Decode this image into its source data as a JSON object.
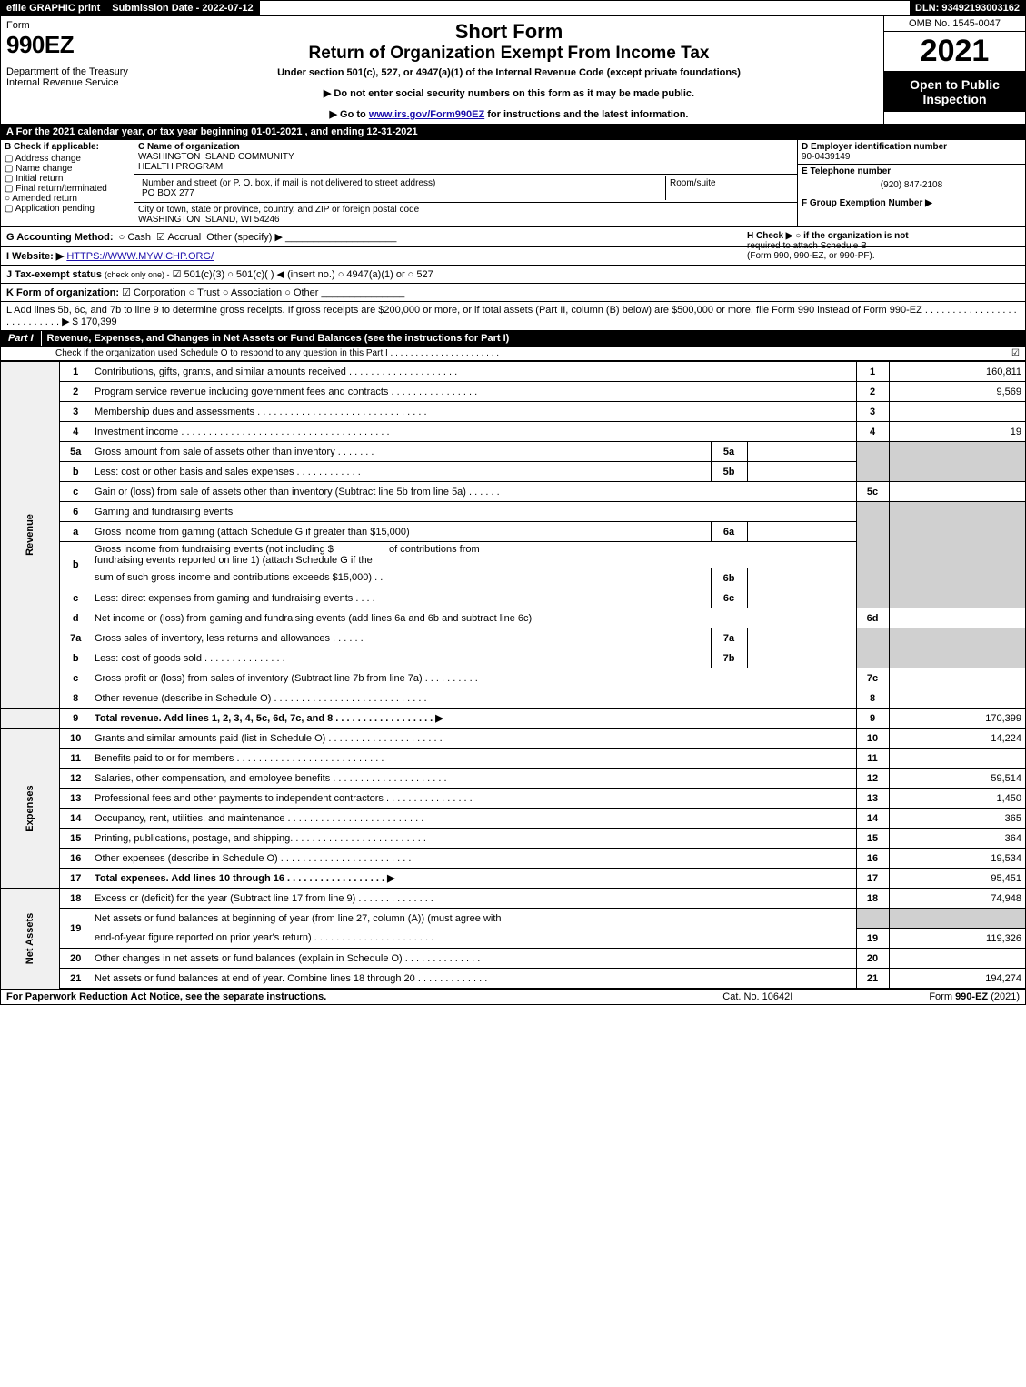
{
  "colors": {
    "black": "#000000",
    "white": "#ffffff",
    "shaded": "#d0d0d0",
    "link": "#1a0dab"
  },
  "topbar": {
    "efile": "efile GRAPHIC print",
    "sub_label": "Submission Date - 2022-07-12",
    "dln": "DLN: 93492193003162"
  },
  "header": {
    "form_label": "Form",
    "form_number": "990EZ",
    "dept1": "Department of the Treasury",
    "dept2": "Internal Revenue Service",
    "short_form": "Short Form",
    "title": "Return of Organization Exempt From Income Tax",
    "subtitle": "Under section 501(c), 527, or 4947(a)(1) of the Internal Revenue Code (except private foundations)",
    "directive1": "▶ Do not enter social security numbers on this form as it may be made public.",
    "directive2_pre": "▶ Go to ",
    "directive2_link": "www.irs.gov/Form990EZ",
    "directive2_post": " for instructions and the latest information.",
    "omb": "OMB No. 1545-0047",
    "year": "2021",
    "open": "Open to Public Inspection"
  },
  "row_a": "A  For the 2021 calendar year, or tax year beginning 01-01-2021  , and ending 12-31-2021",
  "section_b": {
    "label": "B  Check if applicable:",
    "items": [
      "Address change",
      "Name change",
      "Initial return",
      "Final return/terminated",
      "Amended return",
      "Application pending"
    ]
  },
  "section_c": {
    "name_lbl": "C Name of organization",
    "name1": "WASHINGTON ISLAND COMMUNITY",
    "name2": "HEALTH PROGRAM",
    "street_lbl": "Number and street (or P. O. box, if mail is not delivered to street address)",
    "street": "PO BOX 277",
    "suite_lbl": "Room/suite",
    "city_lbl": "City or town, state or province, country, and ZIP or foreign postal code",
    "city": "WASHINGTON ISLAND, WI  54246"
  },
  "section_d": {
    "ein_lbl": "D Employer identification number",
    "ein": "90-0439149",
    "tel_lbl": "E Telephone number",
    "tel": "(920) 847-2108",
    "grp_lbl": "F Group Exemption Number  ▶"
  },
  "row_g": {
    "label": "G Accounting Method:",
    "cash": "Cash",
    "accrual": "Accrual",
    "other": "Other (specify) ▶",
    "line": "____________________"
  },
  "row_h": {
    "label": "H  Check ▶  ○  if the organization is not",
    "line2": "required to attach Schedule B",
    "line3": "(Form 990, 990-EZ, or 990-PF)."
  },
  "row_i": {
    "label": "I Website: ▶",
    "url": "HTTPS://WWW.MYWICHP.ORG/"
  },
  "row_j": {
    "label": "J Tax-exempt status",
    "small": "(check only one) -",
    "opt1": "501(c)(3)",
    "opt2": "501(c)(  )",
    "insert": "◀ (insert no.)",
    "opt3": "4947(a)(1) or",
    "opt4": "527"
  },
  "row_k": {
    "label": "K Form of organization:",
    "opts": [
      "Corporation",
      "Trust",
      "Association",
      "Other"
    ],
    "checked": 0,
    "line": "_______________"
  },
  "row_l": {
    "text": "L Add lines 5b, 6c, and 7b to line 9 to determine gross receipts. If gross receipts are $200,000 or more, or if total assets (Part II, column (B) below) are $500,000 or more, file Form 990 instead of Form 990-EZ  .  .  .  .  .  .  .  .  .  .  .  .  .  .  .  .  .  .  .  .  .  .  .  .  .  .  . ▶ $",
    "amount": "170,399"
  },
  "part1": {
    "tab": "Part I",
    "title": "Revenue, Expenses, and Changes in Net Assets or Fund Balances (see the instructions for Part I)",
    "check_text": "Check if the organization used Schedule O to respond to any question in this Part I  .  .  .  .  .  .  .  .  .  .  .  .  .  .  .  .  .  .  .  .  .  .",
    "check_checked": true
  },
  "sections": {
    "revenue": "Revenue",
    "expenses": "Expenses",
    "netassets": "Net Assets"
  },
  "lines": {
    "l1": {
      "n": "1",
      "d": "Contributions, gifts, grants, and similar amounts received  .  .  .  .  .  .  .  .  .  .  .  .  .  .  .  .  .  .  .  .",
      "ln": "1",
      "v": "160,811"
    },
    "l2": {
      "n": "2",
      "d": "Program service revenue including government fees and contracts  .  .  .  .  .  .  .  .  .  .  .  .  .  .  .  .",
      "ln": "2",
      "v": "9,569"
    },
    "l3": {
      "n": "3",
      "d": "Membership dues and assessments  .  .  .  .  .  .  .  .  .  .  .  .  .  .  .  .  .  .  .  .  .  .  .  .  .  .  .  .  .  .  .",
      "ln": "3",
      "v": ""
    },
    "l4": {
      "n": "4",
      "d": "Investment income  .  .  .  .  .  .  .  .  .  .  .  .  .  .  .  .  .  .  .  .  .  .  .  .  .  .  .  .  .  .  .  .  .  .  .  .  .  .",
      "ln": "4",
      "v": "19"
    },
    "l5a": {
      "n": "5a",
      "d": "Gross amount from sale of assets other than inventory  .  .  .  .  .  .  .",
      "sub": "5a",
      "sv": ""
    },
    "l5b": {
      "n": "b",
      "d": "Less: cost or other basis and sales expenses  .  .  .  .  .  .  .  .  .  .  .  .",
      "sub": "5b",
      "sv": ""
    },
    "l5c": {
      "n": "c",
      "d": "Gain or (loss) from sale of assets other than inventory (Subtract line 5b from line 5a)  .  .  .  .  .  .",
      "ln": "5c",
      "v": ""
    },
    "l6": {
      "n": "6",
      "d": "Gaming and fundraising events"
    },
    "l6a": {
      "n": "a",
      "d": "Gross income from gaming (attach Schedule G if greater than $15,000)",
      "sub": "6a",
      "sv": ""
    },
    "l6b": {
      "n": "b",
      "d1": "Gross income from fundraising events (not including $",
      "d2": "of contributions from",
      "d3": "fundraising events reported on line 1) (attach Schedule G if the",
      "d4": "sum of such gross income and contributions exceeds $15,000)   .  .",
      "sub": "6b",
      "sv": ""
    },
    "l6c": {
      "n": "c",
      "d": "Less: direct expenses from gaming and fundraising events   .  .  .  .",
      "sub": "6c",
      "sv": ""
    },
    "l6d": {
      "n": "d",
      "d": "Net income or (loss) from gaming and fundraising events (add lines 6a and 6b and subtract line 6c)",
      "ln": "6d",
      "v": ""
    },
    "l7a": {
      "n": "7a",
      "d": "Gross sales of inventory, less returns and allowances  .  .  .  .  .  .",
      "sub": "7a",
      "sv": ""
    },
    "l7b": {
      "n": "b",
      "d": "Less: cost of goods sold        .  .  .  .  .  .  .  .  .  .  .  .  .  .  .",
      "sub": "7b",
      "sv": ""
    },
    "l7c": {
      "n": "c",
      "d": "Gross profit or (loss) from sales of inventory (Subtract line 7b from line 7a)  .  .  .  .  .  .  .  .  .  .",
      "ln": "7c",
      "v": ""
    },
    "l8": {
      "n": "8",
      "d": "Other revenue (describe in Schedule O)  .  .  .  .  .  .  .  .  .  .  .  .  .  .  .  .  .  .  .  .  .  .  .  .  .  .  .  .",
      "ln": "8",
      "v": ""
    },
    "l9": {
      "n": "9",
      "d": "Total revenue. Add lines 1, 2, 3, 4, 5c, 6d, 7c, and 8   .  .  .  .  .  .  .  .  .  .  .  .  .  .  .  .  .  .      ▶",
      "ln": "9",
      "v": "170,399",
      "bold": true
    },
    "l10": {
      "n": "10",
      "d": "Grants and similar amounts paid (list in Schedule O)  .  .  .  .  .  .  .  .  .  .  .  .  .  .  .  .  .  .  .  .  .",
      "ln": "10",
      "v": "14,224"
    },
    "l11": {
      "n": "11",
      "d": "Benefits paid to or for members       .  .  .  .  .  .  .  .  .  .  .  .  .  .  .  .  .  .  .  .  .  .  .  .  .  .  .",
      "ln": "11",
      "v": ""
    },
    "l12": {
      "n": "12",
      "d": "Salaries, other compensation, and employee benefits  .  .  .  .  .  .  .  .  .  .  .  .  .  .  .  .  .  .  .  .  .",
      "ln": "12",
      "v": "59,514"
    },
    "l13": {
      "n": "13",
      "d": "Professional fees and other payments to independent contractors  .  .  .  .  .  .  .  .  .  .  .  .  .  .  .  .",
      "ln": "13",
      "v": "1,450"
    },
    "l14": {
      "n": "14",
      "d": "Occupancy, rent, utilities, and maintenance .  .  .  .  .  .  .  .  .  .  .  .  .  .  .  .  .  .  .  .  .  .  .  .  .",
      "ln": "14",
      "v": "365"
    },
    "l15": {
      "n": "15",
      "d": "Printing, publications, postage, and shipping.  .  .  .  .  .  .  .  .  .  .  .  .  .  .  .  .  .  .  .  .  .  .  .  .",
      "ln": "15",
      "v": "364"
    },
    "l16": {
      "n": "16",
      "d": "Other expenses (describe in Schedule O)     .  .  .  .  .  .  .  .  .  .  .  .  .  .  .  .  .  .  .  .  .  .  .  .",
      "ln": "16",
      "v": "19,534"
    },
    "l17": {
      "n": "17",
      "d": "Total expenses. Add lines 10 through 16     .  .  .  .  .  .  .  .  .  .  .  .  .  .  .  .  .  .         ▶",
      "ln": "17",
      "v": "95,451",
      "bold": true
    },
    "l18": {
      "n": "18",
      "d": "Excess or (deficit) for the year (Subtract line 17 from line 9)     .  .  .  .  .  .  .  .  .  .  .  .  .  .",
      "ln": "18",
      "v": "74,948"
    },
    "l19": {
      "n": "19",
      "d1": "Net assets or fund balances at beginning of year (from line 27, column (A)) (must agree with",
      "d2": "end-of-year figure reported on prior year's return) .  .  .  .  .  .  .  .  .  .  .  .  .  .  .  .  .  .  .  .  .  .",
      "ln": "19",
      "v": "119,326"
    },
    "l20": {
      "n": "20",
      "d": "Other changes in net assets or fund balances (explain in Schedule O)  .  .  .  .  .  .  .  .  .  .  .  .  .  .",
      "ln": "20",
      "v": ""
    },
    "l21": {
      "n": "21",
      "d": "Net assets or fund balances at end of year. Combine lines 18 through 20  .  .  .  .  .  .  .  .  .  .  .  .  .",
      "ln": "21",
      "v": "194,274"
    }
  },
  "footer": {
    "left": "For Paperwork Reduction Act Notice, see the separate instructions.",
    "cat": "Cat. No. 10642I",
    "right": "Form 990-EZ (2021)"
  }
}
